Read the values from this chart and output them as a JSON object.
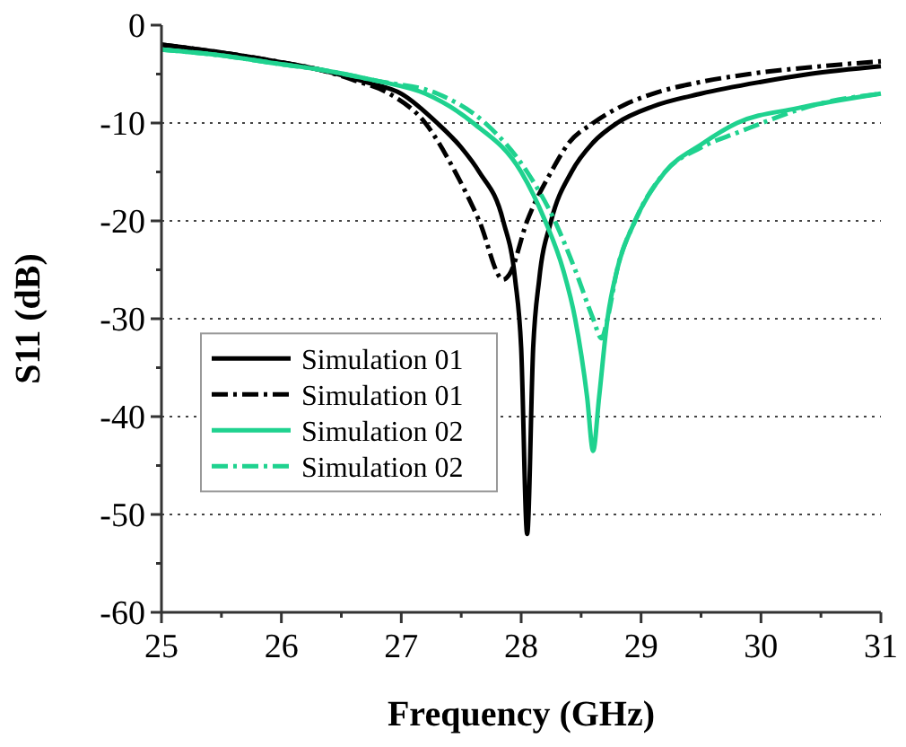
{
  "chart_data": {
    "type": "line",
    "xlabel": "Frequency (GHz)",
    "ylabel": "S11 (dB)",
    "xlim": [
      25,
      31
    ],
    "ylim": [
      -60,
      0
    ],
    "xticks": [
      25,
      {
        "value": 25.5,
        "label": null
      },
      26,
      {
        "value": 26.5,
        "label": null
      },
      27,
      {
        "value": 27.5,
        "label": null
      },
      28,
      {
        "value": 28.5,
        "label": null
      },
      29,
      {
        "value": 29.5,
        "label": null
      },
      30,
      {
        "value": 30.5,
        "label": null
      },
      31
    ],
    "yticks": [
      -60,
      {
        "value": -55,
        "label": null
      },
      -50,
      {
        "value": -45,
        "label": null
      },
      -40,
      {
        "value": -35,
        "label": null
      },
      -30,
      {
        "value": -25,
        "label": null
      },
      -20,
      {
        "value": -15,
        "label": null
      },
      -10,
      {
        "value": -5,
        "label": null
      },
      0
    ],
    "grid": "y",
    "legend": "bottom left",
    "marker": "none",
    "series": [
      {
        "name": "Simulation 01",
        "color": "#000000",
        "line_style": "solid",
        "x": [
          25,
          25.5,
          26,
          26.3,
          26.7,
          27,
          27.3,
          27.5,
          27.65,
          27.85,
          27.95,
          28,
          28.05,
          28.1,
          28.15,
          28.25,
          28.42,
          28.6,
          28.8,
          29.1,
          29.5,
          30,
          30.4,
          31
        ],
        "values": [
          -2,
          -2.8,
          -3.8,
          -4.5,
          -5.8,
          -7,
          -10,
          -12.5,
          -15,
          -20,
          -26,
          -33,
          -52,
          -33,
          -26,
          -20,
          -15,
          -12,
          -10,
          -8.3,
          -7,
          -5.8,
          -5,
          -4.2
        ]
      },
      {
        "name": "Simulation 01",
        "color": "#000000",
        "line_style": "dashed-dot",
        "x": [
          25,
          25.5,
          26,
          26.3,
          26.6,
          26.9,
          27.2,
          27.45,
          27.65,
          27.85,
          27.9,
          28.05,
          28.25,
          28.4,
          28.6,
          28.85,
          29.1,
          29.5,
          29.9,
          30.5,
          31
        ],
        "values": [
          -2,
          -2.8,
          -3.8,
          -4.5,
          -5.6,
          -7,
          -10,
          -15,
          -20,
          -26,
          -25.5,
          -20,
          -15,
          -12,
          -10,
          -8.2,
          -7,
          -5.8,
          -5,
          -4.2,
          -3.7
        ]
      },
      {
        "name": "Simulation 02",
        "color": "#1fd28f",
        "line_style": "solid",
        "x": [
          25,
          25.5,
          26,
          26.3,
          26.8,
          27.2,
          27.6,
          28,
          28.2,
          28.35,
          28.45,
          28.55,
          28.6,
          28.65,
          28.72,
          28.8,
          28.95,
          29.2,
          29.5,
          29.8,
          30.3,
          31
        ],
        "values": [
          -2.5,
          -3.1,
          -4,
          -4.5,
          -5.7,
          -7,
          -10,
          -15,
          -20,
          -25,
          -30,
          -38,
          -43.5,
          -38,
          -30,
          -25,
          -20,
          -15,
          -12.2,
          -10,
          -8.5,
          -7
        ]
      },
      {
        "name": "Simulation 02",
        "color": "#1fd28f",
        "line_style": "dashed-dot",
        "x": [
          25,
          25.5,
          26,
          26.3,
          26.8,
          27.3,
          27.7,
          28.05,
          28.28,
          28.45,
          28.6,
          28.67,
          28.72,
          28.8,
          28.95,
          29.2,
          29.5,
          29.8,
          30.5,
          31
        ],
        "values": [
          -2.5,
          -3.1,
          -4,
          -4.5,
          -5.7,
          -7,
          -10,
          -15,
          -20,
          -25,
          -30,
          -32,
          -30,
          -25,
          -20,
          -15,
          -12.5,
          -11,
          -8,
          -7
        ]
      }
    ]
  }
}
